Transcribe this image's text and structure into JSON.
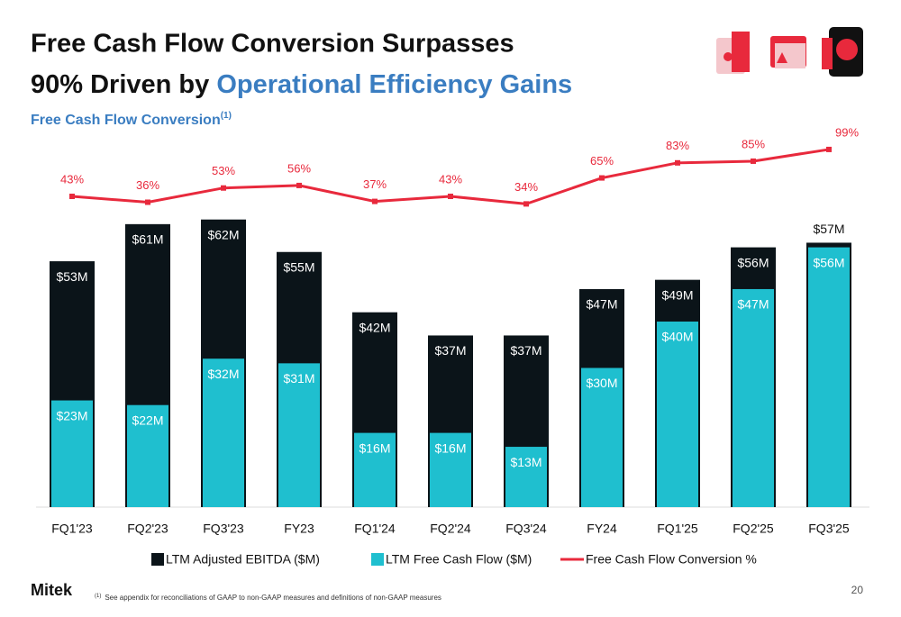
{
  "header": {
    "title_line1": "Free Cash Flow Conversion Surpasses",
    "title_line2_plain": "90% Driven by",
    "title_line2_highlight": "Operational Efficiency Gains",
    "subtitle": "Free Cash Flow Conversion",
    "subtitle_marker": "(1)"
  },
  "chart_data": {
    "type": "bar-line",
    "categories": [
      "FQ1'23",
      "FQ2'23",
      "FQ3'23",
      "FY23",
      "FQ1'24",
      "FQ2'24",
      "FQ3'24",
      "FY24",
      "FQ1'25",
      "FQ2'25",
      "FQ3'25"
    ],
    "series": [
      {
        "name": "LTM Adjusted EBITDA ($M)",
        "color": "#0b1419",
        "kind": "bar",
        "values": [
          53,
          61,
          62,
          55,
          42,
          37,
          37,
          47,
          49,
          56,
          57
        ],
        "value_labels": [
          "$53M",
          "$61M",
          "$62M",
          "$55M",
          "$42M",
          "$37M",
          "$37M",
          "$47M",
          "$49M",
          "$56M",
          "$57M"
        ]
      },
      {
        "name": "LTM Free Cash Flow ($M)",
        "color": "#1fbfcf",
        "kind": "bar",
        "values": [
          23,
          22,
          32,
          31,
          16,
          16,
          13,
          30,
          40,
          47,
          56
        ],
        "value_labels": [
          "$23M",
          "$22M",
          "$32M",
          "$31M",
          "$16M",
          "$16M",
          "$13M",
          "$30M",
          "$40M",
          "$47M",
          "$56M"
        ]
      },
      {
        "name": "Free Cash Flow Conversion %",
        "color": "#e8293c",
        "kind": "line",
        "values": [
          43,
          36,
          53,
          56,
          37,
          43,
          34,
          65,
          83,
          85,
          99
        ],
        "value_labels": [
          "43%",
          "36%",
          "53%",
          "56%",
          "37%",
          "43%",
          "34%",
          "65%",
          "83%",
          "85%",
          "99%"
        ]
      }
    ],
    "legend": "bottom"
  },
  "footer": {
    "brand": "Mitek",
    "footnote_marker": "(1)",
    "footnote": "See appendix for reconciliations of GAAP to non-GAAP measures and definitions of non-GAAP measures",
    "page_number": "20"
  }
}
